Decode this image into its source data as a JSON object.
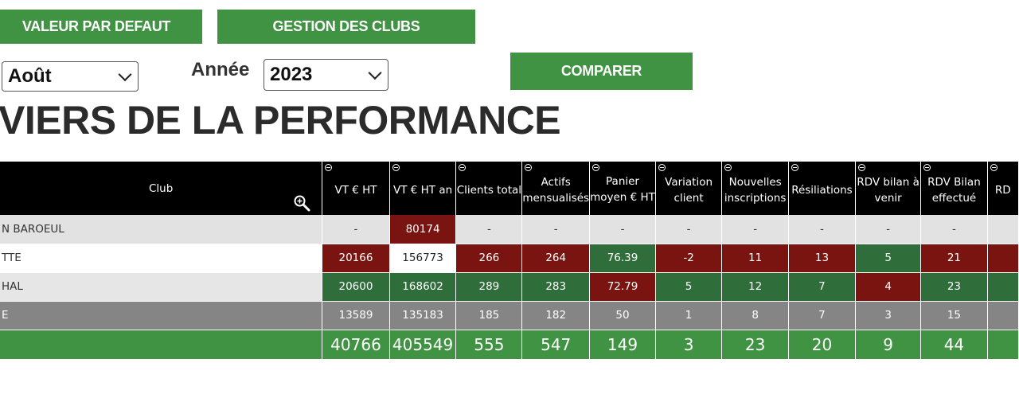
{
  "toolbar": {
    "default_label": "VALEUR PAR DEFAUT",
    "clubs_label": "GESTION DES CLUBS",
    "compare_label": "COMPARER"
  },
  "filters": {
    "month_value": "Août",
    "year_label": "Année",
    "year_value": "2023"
  },
  "page_title": "VIERS DE LA PERFORMANCE",
  "table": {
    "columns": [
      "Club",
      "VT € HT",
      "VT € HT an",
      "Clients total",
      "Actifs mensualisés",
      "Panier moyen € HT",
      "Variation client",
      "Nouvelles inscriptions",
      "Résiliations",
      "RDV bilan à venir",
      "RDV Bilan effectué",
      "RD"
    ],
    "rows": [
      {
        "club": "N BAROEUL",
        "cells": [
          "-",
          "80174",
          "-",
          "-",
          "-",
          "-",
          "-",
          "-",
          "-",
          "-",
          ""
        ]
      },
      {
        "club": "TTE",
        "cells": [
          "20166",
          "156773",
          "266",
          "264",
          "76.39",
          "-2",
          "11",
          "13",
          "5",
          "21",
          ""
        ]
      },
      {
        "club": "HAL",
        "cells": [
          "20600",
          "168602",
          "289",
          "283",
          "72.79",
          "5",
          "12",
          "7",
          "4",
          "23",
          ""
        ]
      },
      {
        "club": "E",
        "cells": [
          "13589",
          "135183",
          "185",
          "182",
          "50",
          "1",
          "8",
          "7",
          "3",
          "15",
          ""
        ]
      }
    ],
    "totals": [
      "40766",
      "405549",
      "555",
      "547",
      "149",
      "3",
      "23",
      "20",
      "9",
      "44",
      ""
    ]
  },
  "colors": {
    "button_green": "#3f9342",
    "cell_red": "#7a1410",
    "cell_green": "#2f6d3b",
    "header_black": "#000000",
    "row_gray": "#858585"
  }
}
